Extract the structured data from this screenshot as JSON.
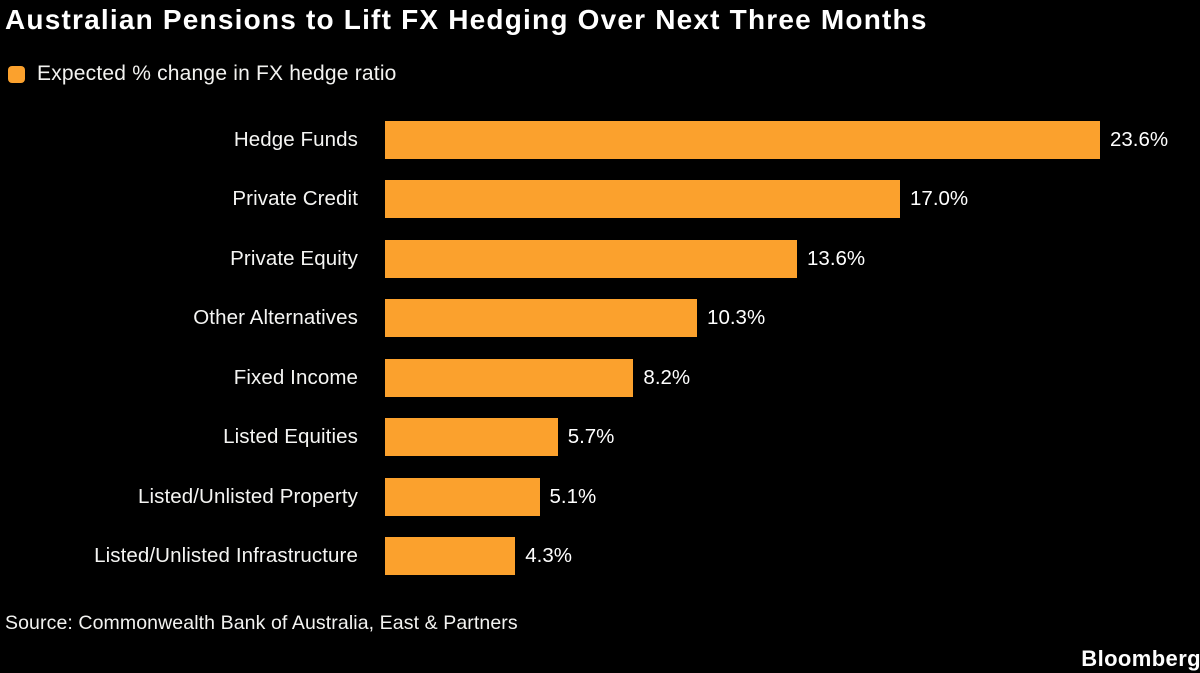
{
  "title": "Australian Pensions to Lift FX Hedging Over Next Three Months",
  "legend": {
    "label": "Expected % change in FX hedge ratio",
    "swatch_color": "#FBA12D"
  },
  "chart_data": {
    "type": "bar",
    "orientation": "horizontal",
    "title": "Australian Pensions to Lift FX Hedging Over Next Three Months",
    "series_label": "Expected % change in FX hedge ratio",
    "categories": [
      "Hedge Funds",
      "Private Credit",
      "Private Equity",
      "Other Alternatives",
      "Fixed Income",
      "Listed Equities",
      "Listed/Unlisted Property",
      "Listed/Unlisted Infrastructure"
    ],
    "values": [
      23.6,
      17.0,
      13.6,
      10.3,
      8.2,
      5.7,
      5.1,
      4.3
    ],
    "value_labels": [
      "23.6%",
      "17.0%",
      "13.6%",
      "10.3%",
      "8.2%",
      "5.7%",
      "5.1%",
      "4.3%"
    ],
    "xlim": [
      0,
      24.2
    ],
    "bar_color": "#FBA12D",
    "grid": false,
    "legend_position": "top-left",
    "value_labels_position": "right-of-bar"
  },
  "source": "Source: Commonwealth Bank of Australia, East & Partners",
  "branding": "Bloomberg",
  "colors": {
    "background": "#000000",
    "text": "#FFFFFF",
    "accent": "#FBA12D"
  }
}
